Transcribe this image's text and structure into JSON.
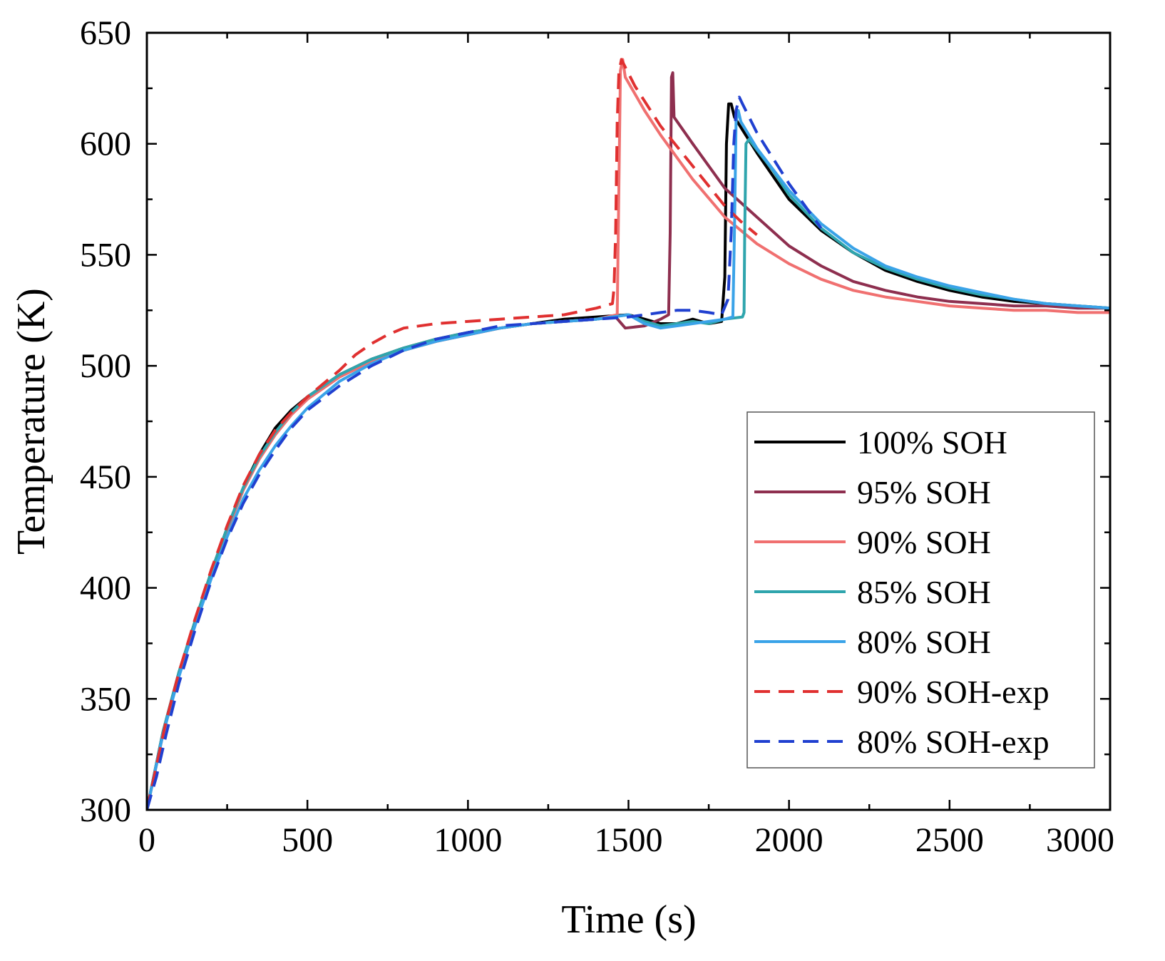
{
  "chart_data": {
    "type": "line",
    "title": "",
    "xlabel": "Time (s)",
    "ylabel": "Temperature (K)",
    "xlim": [
      0,
      3000
    ],
    "ylim": [
      300,
      650
    ],
    "xticks": [
      0,
      500,
      1000,
      1500,
      2000,
      2500,
      3000
    ],
    "yticks": [
      300,
      350,
      400,
      450,
      500,
      550,
      600,
      650
    ],
    "xtick_labels": [
      "0",
      "500",
      "1000",
      "1500",
      "2000",
      "2500",
      "3000"
    ],
    "ytick_labels": [
      "300",
      "350",
      "400",
      "450",
      "500",
      "550",
      "600",
      "650"
    ],
    "x_minor_step": 250,
    "y_minor_step": 25,
    "grid": false,
    "legend_position": "right-middle",
    "series": [
      {
        "name": "100% SOH",
        "color": "#000000",
        "dash": false,
        "points": [
          [
            0,
            300
          ],
          [
            50,
            335
          ],
          [
            100,
            362
          ],
          [
            150,
            385
          ],
          [
            200,
            407
          ],
          [
            250,
            427
          ],
          [
            300,
            445
          ],
          [
            350,
            460
          ],
          [
            400,
            472
          ],
          [
            450,
            480
          ],
          [
            500,
            486
          ],
          [
            600,
            496
          ],
          [
            700,
            503
          ],
          [
            800,
            508
          ],
          [
            900,
            512
          ],
          [
            1000,
            515
          ],
          [
            1100,
            517
          ],
          [
            1200,
            519
          ],
          [
            1300,
            521
          ],
          [
            1400,
            522
          ],
          [
            1500,
            523
          ],
          [
            1550,
            521
          ],
          [
            1600,
            519
          ],
          [
            1650,
            519
          ],
          [
            1700,
            521
          ],
          [
            1750,
            519
          ],
          [
            1790,
            520
          ],
          [
            1800,
            540
          ],
          [
            1805,
            600
          ],
          [
            1812,
            618
          ],
          [
            1820,
            618
          ],
          [
            1830,
            612
          ],
          [
            1900,
            596
          ],
          [
            2000,
            575
          ],
          [
            2100,
            561
          ],
          [
            2200,
            551
          ],
          [
            2300,
            543
          ],
          [
            2400,
            538
          ],
          [
            2500,
            534
          ],
          [
            2600,
            531
          ],
          [
            2700,
            529
          ],
          [
            2800,
            528
          ],
          [
            2900,
            527
          ],
          [
            3000,
            526
          ]
        ]
      },
      {
        "name": "95% SOH",
        "color": "#8e2f4f",
        "dash": false,
        "points": [
          [
            0,
            300
          ],
          [
            50,
            334
          ],
          [
            100,
            361
          ],
          [
            150,
            384
          ],
          [
            200,
            406
          ],
          [
            250,
            426
          ],
          [
            300,
            444
          ],
          [
            350,
            458
          ],
          [
            400,
            469
          ],
          [
            450,
            478
          ],
          [
            500,
            485
          ],
          [
            600,
            495
          ],
          [
            700,
            502
          ],
          [
            800,
            507
          ],
          [
            900,
            511
          ],
          [
            1000,
            514
          ],
          [
            1100,
            517
          ],
          [
            1200,
            519
          ],
          [
            1300,
            520
          ],
          [
            1400,
            521
          ],
          [
            1460,
            522
          ],
          [
            1490,
            517
          ],
          [
            1550,
            518
          ],
          [
            1600,
            521
          ],
          [
            1625,
            523
          ],
          [
            1630,
            560
          ],
          [
            1634,
            630
          ],
          [
            1638,
            632
          ],
          [
            1642,
            612
          ],
          [
            1700,
            600
          ],
          [
            1800,
            580
          ],
          [
            1900,
            567
          ],
          [
            2000,
            554
          ],
          [
            2100,
            545
          ],
          [
            2200,
            538
          ],
          [
            2300,
            534
          ],
          [
            2400,
            531
          ],
          [
            2500,
            529
          ],
          [
            2600,
            528
          ],
          [
            2700,
            527
          ],
          [
            2800,
            527
          ],
          [
            2900,
            526
          ],
          [
            3000,
            526
          ]
        ]
      },
      {
        "name": "90% SOH",
        "color": "#f07070",
        "dash": false,
        "points": [
          [
            0,
            300
          ],
          [
            50,
            334
          ],
          [
            100,
            361
          ],
          [
            150,
            384
          ],
          [
            200,
            406
          ],
          [
            250,
            426
          ],
          [
            300,
            444
          ],
          [
            350,
            458
          ],
          [
            400,
            469
          ],
          [
            450,
            478
          ],
          [
            500,
            485
          ],
          [
            600,
            495
          ],
          [
            700,
            502
          ],
          [
            800,
            507
          ],
          [
            900,
            511
          ],
          [
            1000,
            514
          ],
          [
            1100,
            517
          ],
          [
            1200,
            519
          ],
          [
            1300,
            520
          ],
          [
            1400,
            521
          ],
          [
            1465,
            523
          ],
          [
            1470,
            580
          ],
          [
            1475,
            633
          ],
          [
            1482,
            638
          ],
          [
            1490,
            630
          ],
          [
            1550,
            615
          ],
          [
            1600,
            604
          ],
          [
            1700,
            584
          ],
          [
            1800,
            567
          ],
          [
            1900,
            555
          ],
          [
            2000,
            546
          ],
          [
            2100,
            539
          ],
          [
            2200,
            534
          ],
          [
            2300,
            531
          ],
          [
            2400,
            529
          ],
          [
            2500,
            527
          ],
          [
            2600,
            526
          ],
          [
            2700,
            525
          ],
          [
            2800,
            525
          ],
          [
            2900,
            524
          ],
          [
            3000,
            524
          ]
        ]
      },
      {
        "name": "85% SOH",
        "color": "#2fa5ad",
        "dash": false,
        "points": [
          [
            0,
            300
          ],
          [
            50,
            335
          ],
          [
            100,
            362
          ],
          [
            150,
            385
          ],
          [
            200,
            407
          ],
          [
            250,
            427
          ],
          [
            300,
            445
          ],
          [
            350,
            459
          ],
          [
            400,
            470
          ],
          [
            450,
            479
          ],
          [
            500,
            486
          ],
          [
            600,
            496
          ],
          [
            700,
            503
          ],
          [
            800,
            508
          ],
          [
            900,
            512
          ],
          [
            1000,
            515
          ],
          [
            1100,
            517
          ],
          [
            1200,
            519
          ],
          [
            1300,
            520
          ],
          [
            1400,
            521
          ],
          [
            1500,
            523
          ],
          [
            1550,
            520
          ],
          [
            1600,
            518
          ],
          [
            1650,
            519
          ],
          [
            1700,
            520
          ],
          [
            1750,
            519
          ],
          [
            1800,
            521
          ],
          [
            1855,
            522
          ],
          [
            1860,
            524
          ],
          [
            1862,
            560
          ],
          [
            1866,
            600
          ],
          [
            1875,
            602
          ],
          [
            1950,
            588
          ],
          [
            2000,
            577
          ],
          [
            2100,
            562
          ],
          [
            2200,
            551
          ],
          [
            2300,
            544
          ],
          [
            2400,
            539
          ],
          [
            2500,
            535
          ],
          [
            2600,
            532
          ],
          [
            2700,
            530
          ],
          [
            2800,
            528
          ],
          [
            2900,
            527
          ],
          [
            3000,
            526
          ]
        ]
      },
      {
        "name": "80% SOH",
        "color": "#3aa3e8",
        "dash": false,
        "points": [
          [
            0,
            300
          ],
          [
            50,
            334
          ],
          [
            100,
            360
          ],
          [
            150,
            383
          ],
          [
            200,
            404
          ],
          [
            250,
            423
          ],
          [
            300,
            440
          ],
          [
            350,
            453
          ],
          [
            400,
            464
          ],
          [
            450,
            473
          ],
          [
            500,
            481
          ],
          [
            600,
            493
          ],
          [
            700,
            501
          ],
          [
            800,
            507
          ],
          [
            900,
            511
          ],
          [
            1000,
            514
          ],
          [
            1100,
            517
          ],
          [
            1200,
            519
          ],
          [
            1300,
            520
          ],
          [
            1400,
            521
          ],
          [
            1500,
            523
          ],
          [
            1550,
            519
          ],
          [
            1600,
            517
          ],
          [
            1650,
            518
          ],
          [
            1700,
            519
          ],
          [
            1750,
            520
          ],
          [
            1800,
            521
          ],
          [
            1825,
            522
          ],
          [
            1830,
            560
          ],
          [
            1835,
            610
          ],
          [
            1842,
            615
          ],
          [
            1850,
            610
          ],
          [
            1900,
            598
          ],
          [
            2000,
            579
          ],
          [
            2100,
            564
          ],
          [
            2200,
            553
          ],
          [
            2300,
            545
          ],
          [
            2400,
            540
          ],
          [
            2500,
            536
          ],
          [
            2600,
            533
          ],
          [
            2700,
            530
          ],
          [
            2800,
            528
          ],
          [
            2900,
            527
          ],
          [
            3000,
            526
          ]
        ]
      },
      {
        "name": "90% SOH-exp",
        "color": "#e03030",
        "dash": true,
        "points": [
          [
            0,
            300
          ],
          [
            30,
            320
          ],
          [
            60,
            340
          ],
          [
            100,
            362
          ],
          [
            150,
            386
          ],
          [
            200,
            408
          ],
          [
            250,
            428
          ],
          [
            300,
            446
          ],
          [
            350,
            460
          ],
          [
            400,
            471
          ],
          [
            450,
            479
          ],
          [
            500,
            486
          ],
          [
            550,
            492
          ],
          [
            600,
            498
          ],
          [
            650,
            505
          ],
          [
            700,
            510
          ],
          [
            750,
            514
          ],
          [
            800,
            517
          ],
          [
            900,
            519
          ],
          [
            1000,
            520
          ],
          [
            1100,
            521
          ],
          [
            1200,
            522
          ],
          [
            1300,
            523
          ],
          [
            1400,
            526
          ],
          [
            1450,
            528
          ],
          [
            1455,
            535
          ],
          [
            1460,
            560
          ],
          [
            1465,
            610
          ],
          [
            1470,
            632
          ],
          [
            1478,
            638
          ],
          [
            1485,
            636
          ],
          [
            1520,
            626
          ],
          [
            1600,
            608
          ],
          [
            1700,
            590
          ],
          [
            1800,
            572
          ],
          [
            1850,
            565
          ],
          [
            1900,
            559
          ]
        ]
      },
      {
        "name": "80% SOH-exp",
        "color": "#2040d0",
        "dash": true,
        "points": [
          [
            0,
            300
          ],
          [
            30,
            315
          ],
          [
            60,
            334
          ],
          [
            100,
            357
          ],
          [
            150,
            381
          ],
          [
            200,
            403
          ],
          [
            250,
            422
          ],
          [
            300,
            438
          ],
          [
            350,
            451
          ],
          [
            400,
            462
          ],
          [
            450,
            472
          ],
          [
            500,
            480
          ],
          [
            600,
            491
          ],
          [
            700,
            500
          ],
          [
            800,
            507
          ],
          [
            900,
            512
          ],
          [
            1000,
            515
          ],
          [
            1100,
            518
          ],
          [
            1200,
            519
          ],
          [
            1300,
            520
          ],
          [
            1400,
            521
          ],
          [
            1500,
            522
          ],
          [
            1600,
            524
          ],
          [
            1650,
            525
          ],
          [
            1700,
            525
          ],
          [
            1750,
            524
          ],
          [
            1790,
            523
          ],
          [
            1810,
            530
          ],
          [
            1820,
            560
          ],
          [
            1828,
            600
          ],
          [
            1835,
            615
          ],
          [
            1845,
            621
          ],
          [
            1855,
            618
          ],
          [
            1900,
            605
          ],
          [
            2000,
            582
          ],
          [
            2100,
            562
          ]
        ]
      }
    ]
  }
}
